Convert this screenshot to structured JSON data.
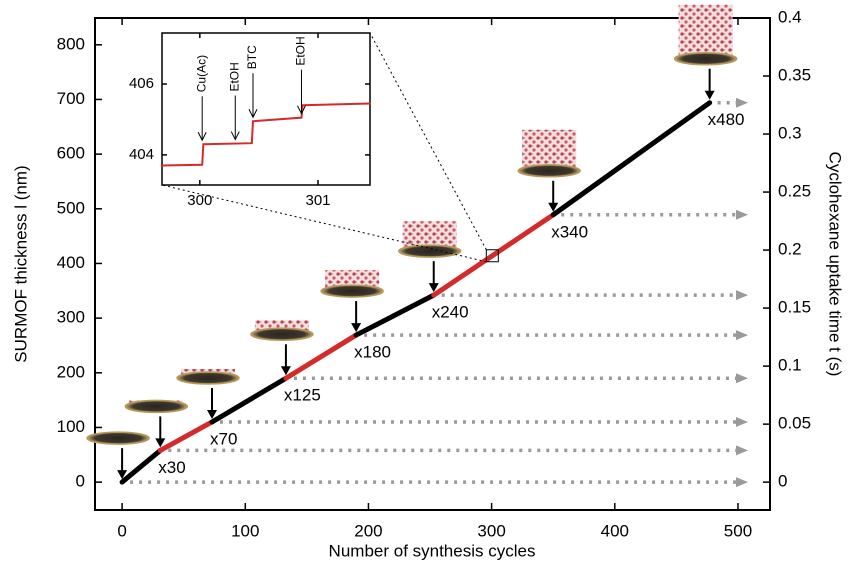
{
  "chart_data": [
    {
      "type": "line",
      "xlabel": "Number of synthesis cycles",
      "ylabel": "SURMOF thickness l (nm)",
      "y2label": "Cyclohexane uptake time t (s)",
      "xlim": [
        -22,
        526
      ],
      "ylim": [
        -51,
        849
      ],
      "y2lim": [
        -0.024,
        0.4
      ],
      "xticks": [
        0,
        100,
        200,
        300,
        400,
        500
      ],
      "yticks": [
        0,
        100,
        200,
        300,
        400,
        500,
        600,
        700,
        800
      ],
      "y2ticks": [
        0,
        0.05,
        0.1,
        0.15,
        0.2,
        0.25,
        0.3,
        0.35,
        0.4
      ],
      "series": [
        {
          "color": "#000000",
          "x": [
            0,
            31
          ],
          "values": [
            0,
            58
          ]
        },
        {
          "color": "#d42a2a",
          "x": [
            31,
            73
          ],
          "values": [
            58,
            110
          ]
        },
        {
          "color": "#000000",
          "x": [
            73,
            133
          ],
          "values": [
            110,
            190
          ]
        },
        {
          "color": "#d42a2a",
          "x": [
            133,
            190
          ],
          "values": [
            190,
            269
          ]
        },
        {
          "color": "#000000",
          "x": [
            190,
            253
          ],
          "values": [
            269,
            342
          ]
        },
        {
          "color": "#d42a2a",
          "x": [
            253,
            350
          ],
          "values": [
            342,
            489
          ]
        },
        {
          "color": "#000000",
          "x": [
            350,
            477
          ],
          "values": [
            489,
            694
          ]
        }
      ],
      "annotations": [
        {
          "text": "x30",
          "x": 31,
          "y": 58
        },
        {
          "text": "x70",
          "x": 73,
          "y": 110
        },
        {
          "text": "x125",
          "x": 133,
          "y": 190
        },
        {
          "text": "x180",
          "x": 190,
          "y": 269
        },
        {
          "text": "x240",
          "x": 253,
          "y": 342
        },
        {
          "text": "x340",
          "x": 350,
          "y": 489
        },
        {
          "text": "x480",
          "x": 477,
          "y": 694
        }
      ]
    },
    {
      "type": "line",
      "xlim": [
        299.68,
        301.44
      ],
      "ylim": [
        403.15,
        407.44
      ],
      "xticks": [
        300,
        301
      ],
      "yticks": [
        404,
        406
      ],
      "series": [
        {
          "color": "#d42a2a",
          "x": [
            299.68,
            300.02,
            300.03,
            300.44,
            300.45,
            300.86,
            300.87,
            301.44
          ],
          "values": [
            403.7,
            403.72,
            404.3,
            404.33,
            404.95,
            405.05,
            405.4,
            405.45
          ]
        }
      ],
      "annotations": [
        {
          "text": "Cu(Ac)",
          "x": 300.02,
          "y": 404.3
        },
        {
          "text": "EtOH",
          "x": 300.3,
          "y": 404.32
        },
        {
          "text": "BTC",
          "x": 300.45,
          "y": 404.95
        },
        {
          "text": "EtOH",
          "x": 300.86,
          "y": 405.05
        }
      ]
    }
  ]
}
